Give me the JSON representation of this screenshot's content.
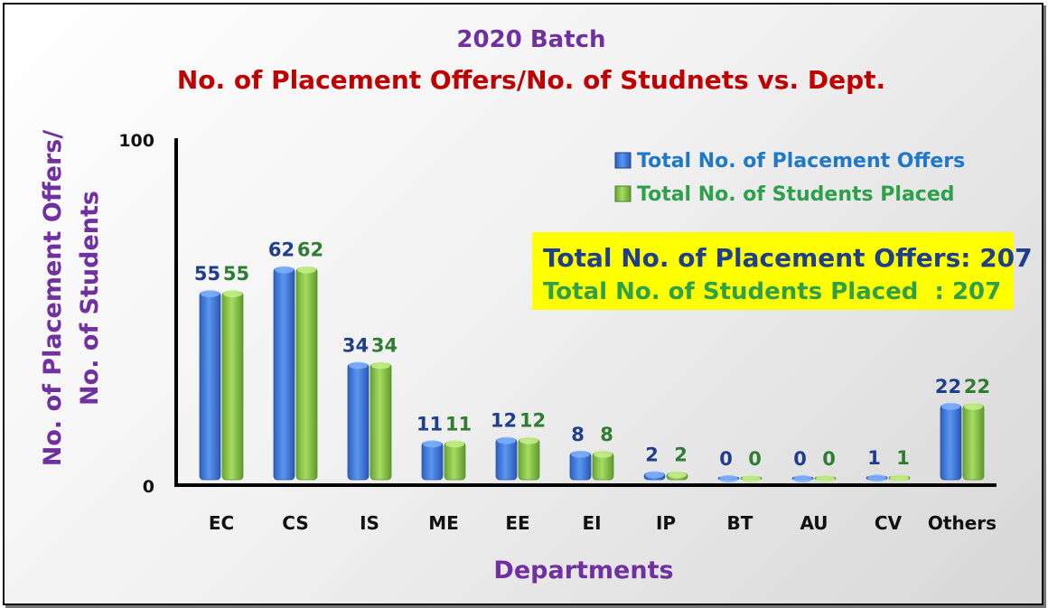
{
  "chart_data": {
    "type": "bar",
    "title": "2020 Batch",
    "subtitle": "No. of Placement Offers/No. of Studnets vs. Dept.",
    "xlabel": "Departments",
    "ylabel_line1": "No. of Placement Offers/",
    "ylabel_line2": "No. of Students",
    "ylim": [
      0,
      100
    ],
    "yticks": [
      "0",
      "100"
    ],
    "categories": [
      "EC",
      "CS",
      "IS",
      "ME",
      "EE",
      "EI",
      "IP",
      "BT",
      "AU",
      "CV",
      "Others"
    ],
    "series": [
      {
        "name": "Total No. of Placement Offers",
        "color": "#3b78e0",
        "values": [
          55,
          62,
          34,
          11,
          12,
          8,
          2,
          0,
          0,
          1,
          22
        ]
      },
      {
        "name": "Total No. of Students Placed",
        "color": "#86c843",
        "values": [
          55,
          62,
          34,
          11,
          12,
          8,
          2,
          0,
          0,
          1,
          22
        ]
      }
    ],
    "legend_position": "top-right",
    "grid": false
  },
  "summary": {
    "offers_text": "Total No. of Placement Offers: 207",
    "placed_text": "Total No. of Students Placed  : 207",
    "background": "#ffff00"
  }
}
